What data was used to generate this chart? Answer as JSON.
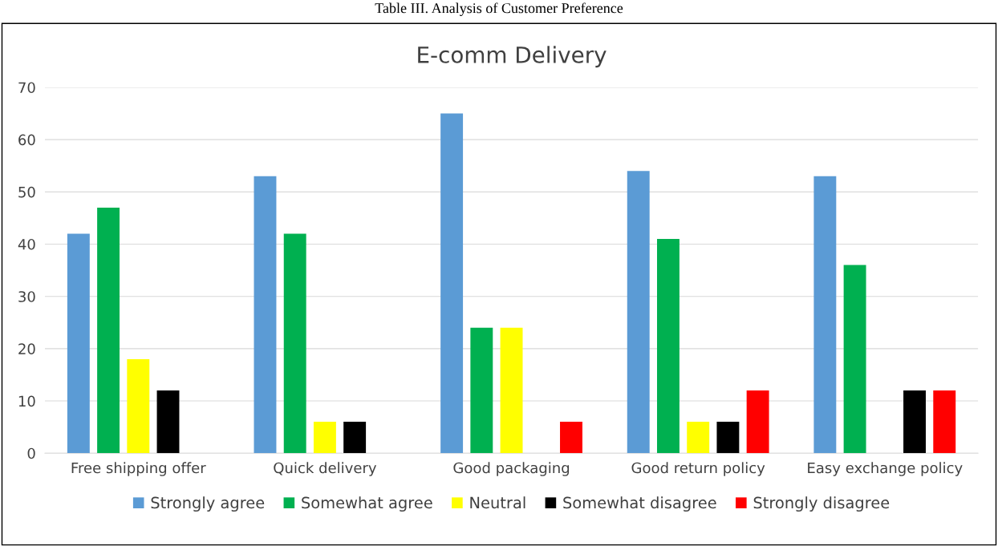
{
  "chart_data": {
    "type": "bar",
    "title": "E-comm Delivery",
    "annotations": [
      "Table III. Analysis of Customer Preference"
    ],
    "categories": [
      "Free shipping offer",
      "Quick delivery",
      "Good packaging",
      "Good return policy",
      "Easy exchange policy"
    ],
    "series": [
      {
        "name": "Strongly agree",
        "color": "#5b9bd5",
        "values": [
          42,
          53,
          65,
          54,
          53
        ]
      },
      {
        "name": "Somewhat agree",
        "color": "#00b050",
        "values": [
          47,
          42,
          24,
          41,
          36
        ]
      },
      {
        "name": "Neutral",
        "color": "#ffff00",
        "values": [
          18,
          6,
          24,
          6,
          0
        ]
      },
      {
        "name": "Somewhat disagree",
        "color": "#000000",
        "values": [
          12,
          6,
          0,
          6,
          12
        ]
      },
      {
        "name": "Strongly disagree",
        "color": "#ff0000",
        "values": [
          0,
          0,
          6,
          12,
          12
        ]
      }
    ],
    "ylim": [
      0,
      70
    ],
    "yticks": [
      0,
      10,
      20,
      30,
      40,
      50,
      60,
      70
    ],
    "grid": "y",
    "legend": "bottom"
  }
}
